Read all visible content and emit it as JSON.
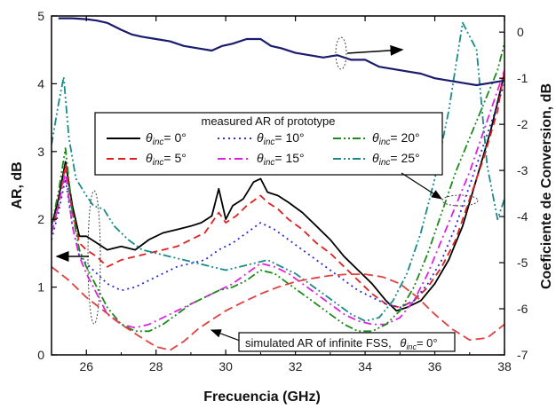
{
  "chart_data": {
    "type": "line",
    "xlabel": "Frecuencia (GHz)",
    "ylabel_left": "AR, dB",
    "ylabel_right": "Coeficiente de Conversion, dB",
    "xlim": [
      25,
      38
    ],
    "ylim_left": [
      0,
      5
    ],
    "ylim_right": [
      -7,
      0.35
    ],
    "xticks": [
      "26",
      "28",
      "30",
      "32",
      "34",
      "36",
      "38"
    ],
    "yticks_left": [
      "0",
      "1",
      "2",
      "3",
      "4",
      "5"
    ],
    "yticks_right": [
      "0",
      "-1",
      "-2",
      "-3",
      "-4",
      "-5",
      "-6",
      "-7"
    ],
    "legend_title": "measured AR of prototype",
    "legend_location": "center-left",
    "series": [
      {
        "name": "θinc= 0°",
        "label_sym": "θ",
        "label_sub": "inc",
        "label_rest": "= 0°",
        "color": "#000000",
        "dash": "solid",
        "axis": "left",
        "x": [
          25.0,
          25.2,
          25.4,
          25.6,
          25.8,
          26.0,
          26.3,
          26.6,
          27.0,
          27.4,
          27.8,
          28.2,
          28.6,
          29.0,
          29.3,
          29.6,
          29.8,
          30.0,
          30.2,
          30.5,
          30.8,
          31.0,
          31.2,
          31.5,
          31.8,
          32.2,
          32.6,
          33.0,
          33.4,
          33.8,
          34.2,
          34.6,
          34.9,
          35.2,
          35.6,
          36.0,
          36.4,
          36.8,
          37.2,
          37.6,
          38.0
        ],
        "y": [
          1.9,
          2.3,
          2.85,
          2.2,
          1.75,
          1.75,
          1.65,
          1.55,
          1.6,
          1.55,
          1.7,
          1.8,
          1.85,
          1.9,
          1.95,
          2.05,
          2.45,
          2.0,
          2.2,
          2.3,
          2.55,
          2.6,
          2.4,
          2.35,
          2.25,
          2.1,
          1.9,
          1.7,
          1.45,
          1.25,
          1.05,
          0.8,
          0.65,
          0.7,
          0.8,
          1.05,
          1.4,
          1.9,
          2.6,
          3.3,
          4.15
        ]
      },
      {
        "name": "θinc= 5°",
        "label_sym": "θ",
        "label_sub": "inc",
        "label_rest": "= 5°",
        "color": "#e02020",
        "dash": "dash",
        "axis": "left",
        "x": [
          25.0,
          25.2,
          25.4,
          25.6,
          25.8,
          26.0,
          26.3,
          26.6,
          27.0,
          27.4,
          27.8,
          28.2,
          28.6,
          29.0,
          29.4,
          29.8,
          30.0,
          30.3,
          30.6,
          31.0,
          31.2,
          31.5,
          31.8,
          32.2,
          32.6,
          33.0,
          33.4,
          33.8,
          34.2,
          34.6,
          35.0,
          35.4,
          35.8,
          36.2,
          36.6,
          37.0,
          37.4,
          37.8,
          38.0
        ],
        "y": [
          1.8,
          2.2,
          2.8,
          2.1,
          1.65,
          1.55,
          1.45,
          1.3,
          1.4,
          1.45,
          1.5,
          1.55,
          1.6,
          1.7,
          1.8,
          2.1,
          1.95,
          2.05,
          2.2,
          2.35,
          2.25,
          2.15,
          2.0,
          1.85,
          1.65,
          1.5,
          1.3,
          1.1,
          0.9,
          0.75,
          0.7,
          0.8,
          1.0,
          1.3,
          1.7,
          2.3,
          2.9,
          3.6,
          4.2
        ]
      },
      {
        "name": "θinc= 10°",
        "label_sym": "θ",
        "label_sub": "inc",
        "label_rest": "= 10°",
        "color": "#2a2ad8",
        "dash": "dot",
        "axis": "left",
        "x": [
          25.0,
          25.2,
          25.4,
          25.6,
          25.8,
          26.0,
          26.3,
          26.6,
          27.0,
          27.4,
          27.8,
          28.2,
          28.6,
          29.0,
          29.4,
          29.8,
          30.2,
          30.6,
          31.0,
          31.4,
          31.8,
          32.2,
          32.6,
          33.0,
          33.4,
          33.8,
          34.2,
          34.6,
          35.0,
          35.4,
          35.8,
          36.2,
          36.6,
          37.0,
          37.4,
          37.8,
          38.0
        ],
        "y": [
          1.7,
          2.1,
          2.6,
          1.9,
          1.45,
          1.35,
          1.2,
          1.05,
          0.95,
          1.0,
          1.1,
          1.2,
          1.3,
          1.35,
          1.4,
          1.55,
          1.65,
          1.8,
          1.95,
          1.85,
          1.7,
          1.55,
          1.4,
          1.25,
          1.1,
          0.95,
          0.85,
          0.75,
          0.7,
          0.8,
          1.05,
          1.4,
          1.9,
          2.5,
          3.1,
          3.7,
          4.0
        ]
      },
      {
        "name": "θinc= 15°",
        "label_sym": "θ",
        "label_sub": "inc",
        "label_rest": "= 15°",
        "color": "#e020e0",
        "dash": "dashdot",
        "axis": "left",
        "x": [
          25.0,
          25.2,
          25.4,
          25.6,
          25.8,
          26.0,
          26.3,
          26.6,
          27.0,
          27.4,
          27.8,
          28.2,
          28.6,
          29.0,
          29.4,
          29.8,
          30.2,
          30.6,
          31.0,
          31.4,
          31.8,
          32.2,
          32.6,
          33.0,
          33.4,
          33.8,
          34.2,
          34.6,
          35.0,
          35.4,
          35.8,
          36.2,
          36.6,
          37.0,
          37.4,
          37.8,
          38.0
        ],
        "y": [
          1.8,
          2.2,
          2.7,
          1.9,
          1.45,
          1.2,
          0.9,
          0.6,
          0.45,
          0.4,
          0.45,
          0.55,
          0.65,
          0.75,
          0.85,
          0.95,
          1.05,
          1.2,
          1.35,
          1.3,
          1.2,
          1.05,
          0.9,
          0.75,
          0.6,
          0.5,
          0.45,
          0.45,
          0.55,
          0.8,
          1.2,
          1.7,
          2.2,
          2.7,
          3.3,
          3.9,
          4.2
        ]
      },
      {
        "name": "θinc= 20°",
        "label_sym": "θ",
        "label_sub": "inc",
        "label_rest": "= 20°",
        "color": "#1a8a1a",
        "dash": "dashdotdot",
        "axis": "left",
        "x": [
          25.0,
          25.2,
          25.4,
          25.6,
          25.8,
          26.0,
          26.3,
          26.6,
          27.0,
          27.4,
          27.8,
          28.2,
          28.6,
          29.0,
          29.4,
          29.8,
          30.2,
          30.6,
          31.0,
          31.4,
          31.8,
          32.2,
          32.6,
          33.0,
          33.4,
          33.8,
          34.2,
          34.6,
          35.0,
          35.4,
          35.8,
          36.2,
          36.6,
          37.0,
          37.4,
          37.8,
          38.0
        ],
        "y": [
          1.9,
          2.4,
          3.05,
          2.1,
          1.55,
          1.3,
          1.0,
          0.7,
          0.45,
          0.35,
          0.35,
          0.45,
          0.6,
          0.75,
          0.85,
          0.95,
          1.0,
          1.1,
          1.25,
          1.2,
          1.05,
          0.9,
          0.75,
          0.6,
          0.45,
          0.35,
          0.35,
          0.45,
          0.65,
          1.0,
          1.5,
          2.1,
          2.7,
          3.2,
          3.7,
          4.2,
          4.6
        ]
      },
      {
        "name": "θinc= 25°",
        "label_sym": "θ",
        "label_sub": "inc",
        "label_rest": "= 25°",
        "color": "#1a8a8a",
        "dash": "dashdotdot",
        "axis": "left",
        "x": [
          25.0,
          25.2,
          25.35,
          25.5,
          25.7,
          26.0,
          26.2,
          26.5,
          26.8,
          27.2,
          27.6,
          28.0,
          28.4,
          28.8,
          29.2,
          29.6,
          30.0,
          30.4,
          30.8,
          31.2,
          31.6,
          32.0,
          32.4,
          32.8,
          33.2,
          33.6,
          34.0,
          34.4,
          34.8,
          35.2,
          35.6,
          36.0,
          36.4,
          36.8,
          37.2,
          37.5,
          37.8,
          38.0
        ],
        "y": [
          3.1,
          3.7,
          4.1,
          3.2,
          2.6,
          2.35,
          2.2,
          2.15,
          1.9,
          1.7,
          1.55,
          1.5,
          1.45,
          1.4,
          1.35,
          1.3,
          1.25,
          1.3,
          1.35,
          1.4,
          1.3,
          1.2,
          1.05,
          0.9,
          0.75,
          0.6,
          0.5,
          0.55,
          0.8,
          1.2,
          1.8,
          2.6,
          3.6,
          4.9,
          4.5,
          2.8,
          2.0,
          2.3
        ]
      },
      {
        "name": "simulated AR of infinite FSS",
        "color": "#e04040",
        "dash": "longdash",
        "axis": "left",
        "x": [
          25.0,
          25.5,
          26.0,
          26.5,
          27.0,
          27.5,
          28.0,
          28.4,
          28.8,
          29.2,
          29.6,
          30.0,
          30.5,
          31.0,
          31.5,
          32.0,
          32.5,
          33.0,
          33.5,
          34.0,
          34.5,
          35.0,
          35.5,
          36.0,
          36.5,
          37.0,
          37.5,
          38.0
        ],
        "y": [
          1.3,
          1.1,
          0.85,
          0.65,
          0.45,
          0.28,
          0.12,
          0.07,
          0.2,
          0.38,
          0.52,
          0.65,
          0.78,
          0.9,
          1.0,
          1.08,
          1.13,
          1.17,
          1.19,
          1.19,
          1.15,
          1.05,
          0.85,
          0.6,
          0.38,
          0.22,
          0.25,
          0.45
        ]
      },
      {
        "name": "conversion",
        "color": "#1a1a6e",
        "dash": "solid",
        "axis": "right",
        "x": [
          25.2,
          25.6,
          26.0,
          26.3,
          26.6,
          27.0,
          27.3,
          27.6,
          28.0,
          28.4,
          28.8,
          29.2,
          29.6,
          29.9,
          30.2,
          30.6,
          31.0,
          31.3,
          31.6,
          32.0,
          32.4,
          32.8,
          33.2,
          33.6,
          34.0,
          34.4,
          34.8,
          35.2,
          35.6,
          36.0,
          36.4,
          36.8,
          37.2,
          37.6,
          38.0
        ],
        "y": [
          0.3,
          0.3,
          0.28,
          0.25,
          0.2,
          0.05,
          -0.05,
          -0.1,
          -0.15,
          -0.2,
          -0.3,
          -0.35,
          -0.4,
          -0.3,
          -0.25,
          -0.15,
          -0.15,
          -0.3,
          -0.35,
          -0.45,
          -0.5,
          -0.55,
          -0.5,
          -0.6,
          -0.6,
          -0.75,
          -0.8,
          -0.85,
          -0.9,
          -1.0,
          -1.05,
          -1.1,
          -1.15,
          -1.1,
          -1.05
        ]
      }
    ],
    "annotations": {
      "sim_label": "simulated AR of infinite FSS,",
      "sim_theta": "θ",
      "sim_sub": "inc",
      "sim_rest": "= 0°"
    }
  }
}
